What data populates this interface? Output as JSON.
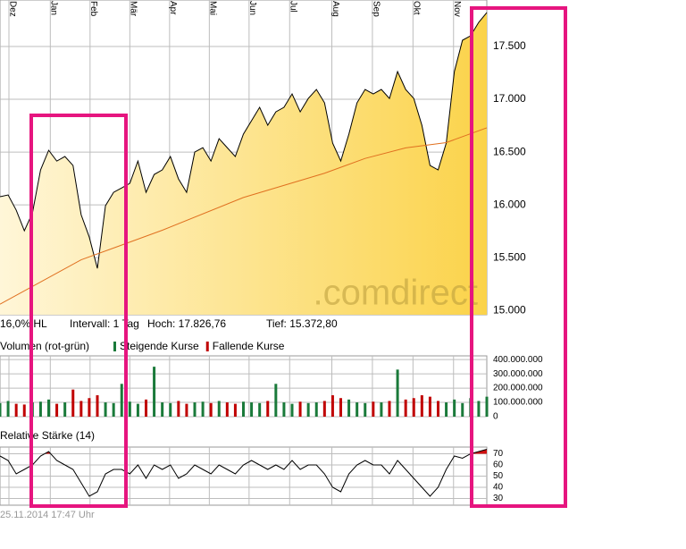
{
  "chart_data": [
    {
      "type": "area",
      "watermark": ".comdirect",
      "info": [
        "16,0% HL",
        "Intervall: 1 Tag",
        "Hoch: 17.826,76",
        "Tief: 15.372,80"
      ],
      "xlim": [
        0,
        60
      ],
      "xticks": [
        {
          "value": 1.1,
          "label": "Dez"
        },
        {
          "value": 6.2,
          "label": "Jan"
        },
        {
          "value": 11.1,
          "label": "Feb"
        },
        {
          "value": 16,
          "label": "Mär"
        },
        {
          "value": 20.9,
          "label": "Apr"
        },
        {
          "value": 25.8,
          "label": "Mai"
        },
        {
          "value": 30.7,
          "label": "Jun"
        },
        {
          "value": 35.7,
          "label": "Jul"
        },
        {
          "value": 40.9,
          "label": "Aug"
        },
        {
          "value": 45.9,
          "label": "Sep"
        },
        {
          "value": 50.9,
          "label": "Okt"
        },
        {
          "value": 55.9,
          "label": "Nov"
        }
      ],
      "ylim": [
        14960,
        17940
      ],
      "yticks": [
        {
          "value": 15000,
          "label": "15.000"
        },
        {
          "value": 15500,
          "label": "15.500"
        },
        {
          "value": 16000,
          "label": "16.000"
        },
        {
          "value": 16500,
          "label": "16.500"
        },
        {
          "value": 17000,
          "label": "17.000"
        },
        {
          "value": 17500,
          "label": "17.500"
        }
      ],
      "grid": true,
      "series": [
        {
          "color": "#000000",
          "fill": "#fbd34a",
          "x": [
            0,
            1,
            2,
            3,
            4,
            5,
            6,
            7,
            8,
            9,
            10,
            11,
            12,
            13,
            14,
            15,
            16,
            17,
            18,
            19,
            20,
            21,
            22,
            23,
            24,
            25,
            26,
            27,
            28,
            29,
            30,
            31,
            32,
            33,
            34,
            35,
            36,
            37,
            38,
            39,
            40,
            41,
            42,
            43,
            44,
            45,
            46,
            47,
            48,
            49,
            50,
            51,
            52,
            53,
            54,
            55,
            56,
            57,
            58,
            59,
            60
          ],
          "values": [
            16077,
            16094,
            15950,
            15755,
            15924,
            16331,
            16517,
            16415,
            16458,
            16373,
            15907,
            15696,
            15399,
            15992,
            16119,
            16161,
            16204,
            16415,
            16119,
            16288,
            16331,
            16458,
            16246,
            16119,
            16500,
            16542,
            16415,
            16627,
            16542,
            16458,
            16670,
            16797,
            16924,
            16754,
            16881,
            16924,
            17051,
            16881,
            17008,
            17093,
            16966,
            16585,
            16415,
            16670,
            16966,
            17093,
            17051,
            17093,
            17008,
            17262,
            17093,
            17008,
            16754,
            16373,
            16331,
            16585,
            17262,
            17559,
            17601,
            17728,
            17821
          ]
        },
        {
          "color": "#e07020",
          "x": [
            0,
            10,
            20,
            30,
            40,
            45,
            50,
            55,
            60
          ],
          "values": [
            15060,
            15480,
            15760,
            16070,
            16300,
            16440,
            16540,
            16590,
            16730
          ]
        }
      ]
    },
    {
      "type": "bar",
      "title": "Volumen (rot-grün)",
      "legend": [
        {
          "name": "Steigende Kurse",
          "color": "#1a7a3a"
        },
        {
          "name": "Fallende Kurse",
          "color": "#c00000"
        }
      ],
      "xlim": [
        0,
        60
      ],
      "ylim": [
        0,
        426000000
      ],
      "yticks": [
        0,
        {
          "value": 100000000,
          "label": "100.000.000"
        },
        {
          "value": 200000000,
          "label": "200.000.000"
        },
        {
          "value": 300000000,
          "label": "300.000.000"
        },
        {
          "value": 400000000,
          "label": "400.000.000"
        }
      ],
      "grid": true,
      "values": [
        95000000,
        110000000,
        90000000,
        85000000,
        100000000,
        105000000,
        120000000,
        90000000,
        100000000,
        190000000,
        110000000,
        130000000,
        150000000,
        100000000,
        95000000,
        230000000,
        105000000,
        90000000,
        120000000,
        350000000,
        100000000,
        95000000,
        110000000,
        90000000,
        100000000,
        105000000,
        95000000,
        110000000,
        100000000,
        90000000,
        105000000,
        100000000,
        95000000,
        110000000,
        230000000,
        100000000,
        90000000,
        105000000,
        95000000,
        100000000,
        110000000,
        150000000,
        130000000,
        120000000,
        100000000,
        95000000,
        105000000,
        100000000,
        110000000,
        330000000,
        120000000,
        130000000,
        150000000,
        140000000,
        110000000,
        100000000,
        120000000,
        95000000,
        130000000,
        110000000,
        140000000
      ]
    },
    {
      "type": "line",
      "title": "Relative Stärke (14)",
      "timestamp": "25.11.2014 17:47 Uhr",
      "xlim": [
        0,
        60
      ],
      "ylim": [
        24,
        76
      ],
      "yticks": [
        30,
        40,
        50,
        60,
        70
      ],
      "threshold": 70,
      "threshold_color": "#d01010",
      "grid": true,
      "series": [
        {
          "color": "#000000",
          "values": [
            68,
            64,
            52,
            56,
            60,
            68,
            72,
            64,
            60,
            56,
            44,
            32,
            36,
            52,
            56,
            56,
            52,
            60,
            48,
            60,
            56,
            60,
            48,
            52,
            60,
            56,
            52,
            60,
            56,
            52,
            60,
            64,
            60,
            56,
            60,
            56,
            64,
            56,
            60,
            60,
            52,
            40,
            36,
            52,
            60,
            64,
            60,
            60,
            52,
            64,
            56,
            48,
            40,
            32,
            40,
            56,
            68,
            66,
            70,
            72,
            74
          ]
        }
      ]
    }
  ]
}
